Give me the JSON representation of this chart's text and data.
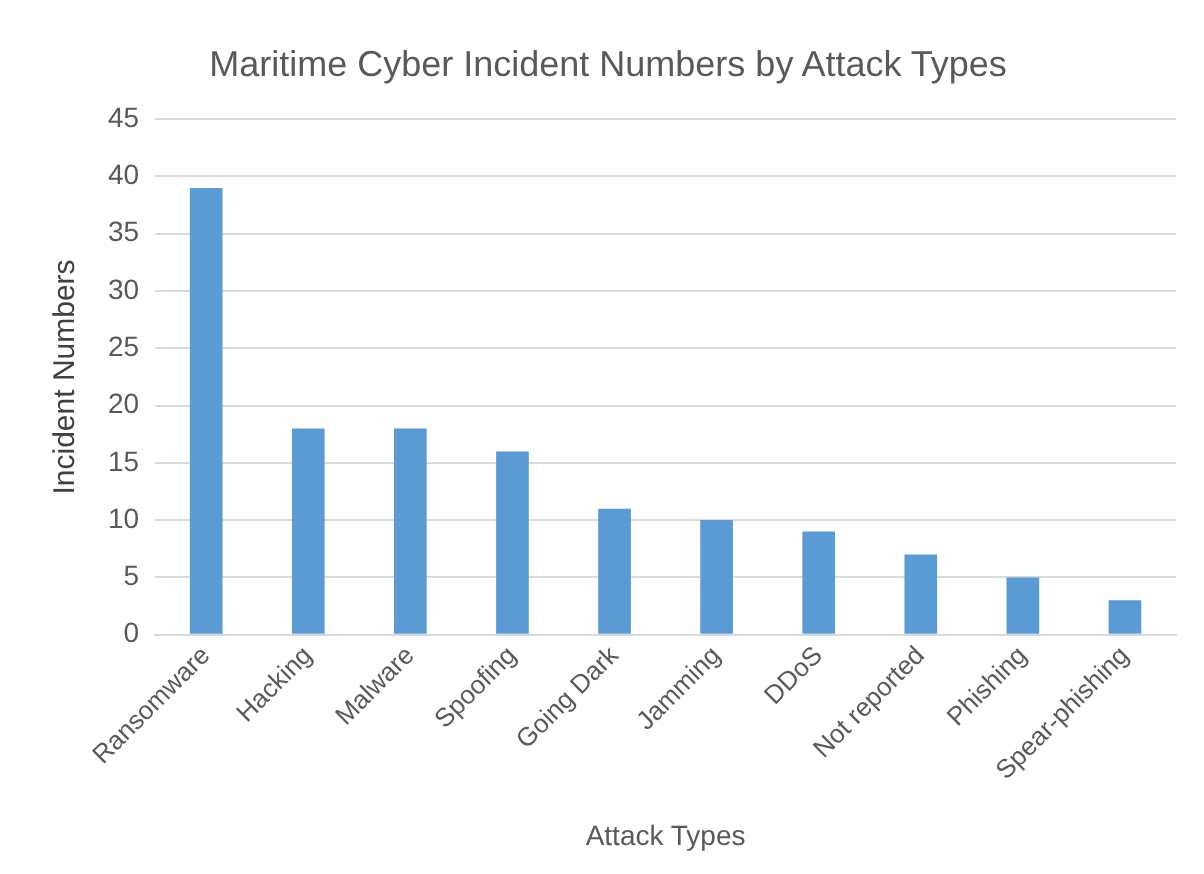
{
  "chart_data": {
    "type": "bar",
    "title": "Maritime Cyber Incident Numbers by Attack Types",
    "xlabel": "Attack Types",
    "ylabel": "Incident Numbers",
    "categories": [
      "Ransomware",
      "Hacking",
      "Malware",
      "Spoofing",
      "Going Dark",
      "Jamming",
      "DDoS",
      "Not reported",
      "Phishing",
      "Spear-phishing"
    ],
    "values": [
      39,
      18,
      18,
      16,
      11,
      10,
      9,
      7,
      5,
      3
    ],
    "color": "#5b9bd5",
    "ylim": [
      0,
      45
    ],
    "yticks": [
      0,
      5,
      10,
      15,
      20,
      25,
      30,
      35,
      40,
      45
    ],
    "grid": "y",
    "legend": false
  }
}
